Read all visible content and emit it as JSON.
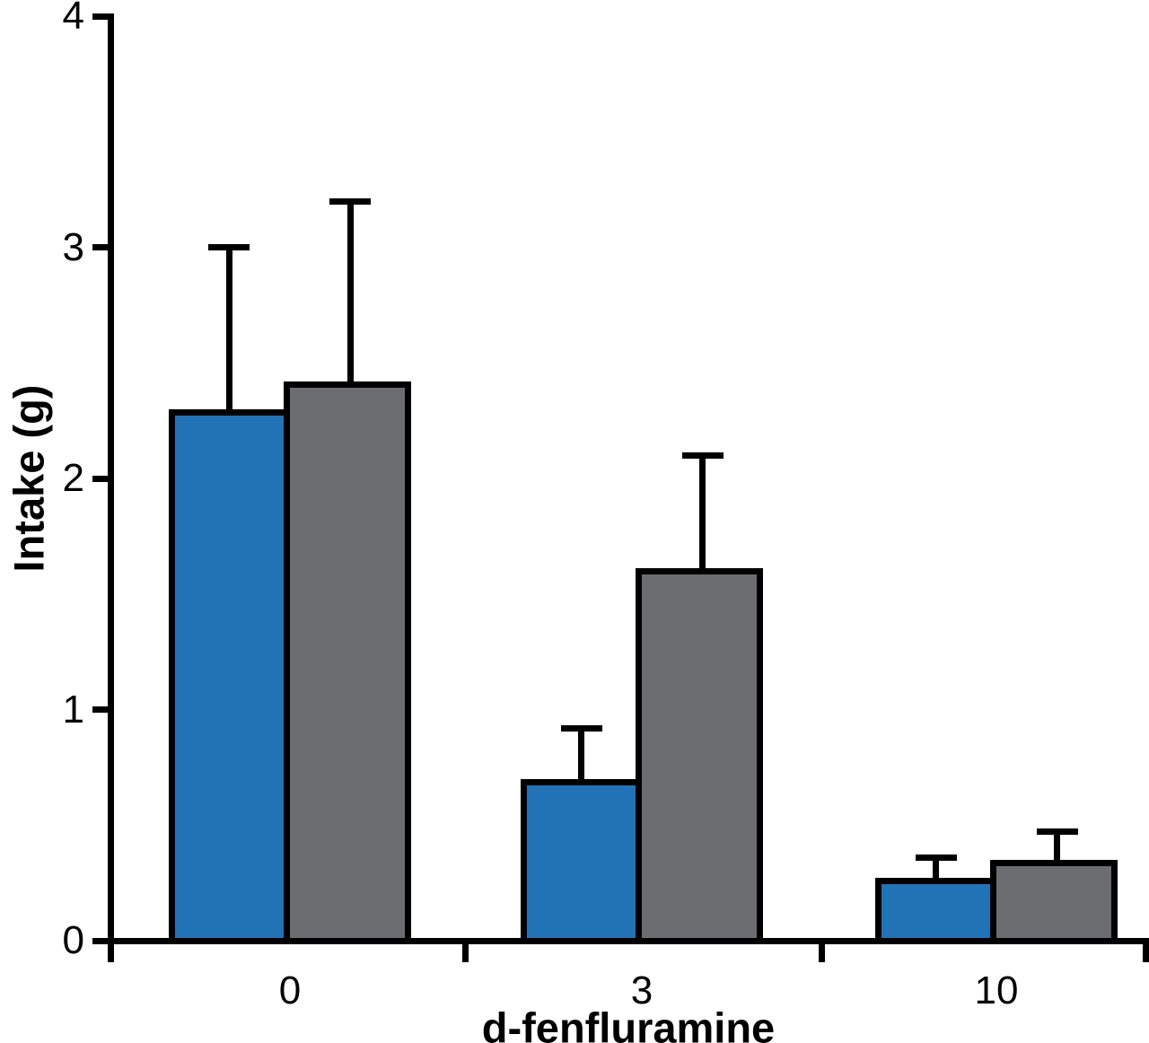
{
  "chart_data": {
    "type": "bar",
    "title": "",
    "xlabel": "d-fenfluramine",
    "ylabel": "Intake (g)",
    "categories": [
      "0",
      "3",
      "10"
    ],
    "series": [
      {
        "name": "blue-series",
        "color": "#2173b6",
        "values": [
          2.3,
          0.7,
          0.27
        ],
        "errors_up": [
          0.7,
          0.22,
          0.09
        ]
      },
      {
        "name": "gray-series",
        "color": "#6c6d70",
        "values": [
          2.42,
          1.61,
          0.35
        ],
        "errors_up": [
          0.78,
          0.49,
          0.12
        ]
      }
    ],
    "ylim": [
      0,
      4
    ],
    "yticks": [
      "0",
      "1",
      "2",
      "3",
      "4"
    ],
    "grid": false,
    "legend": "none",
    "error_bars": "upper-only",
    "axis_color": "#000000",
    "bar_outline_color": "#000000",
    "error_bar_color": "#000000",
    "background_color": "#ffffff"
  }
}
